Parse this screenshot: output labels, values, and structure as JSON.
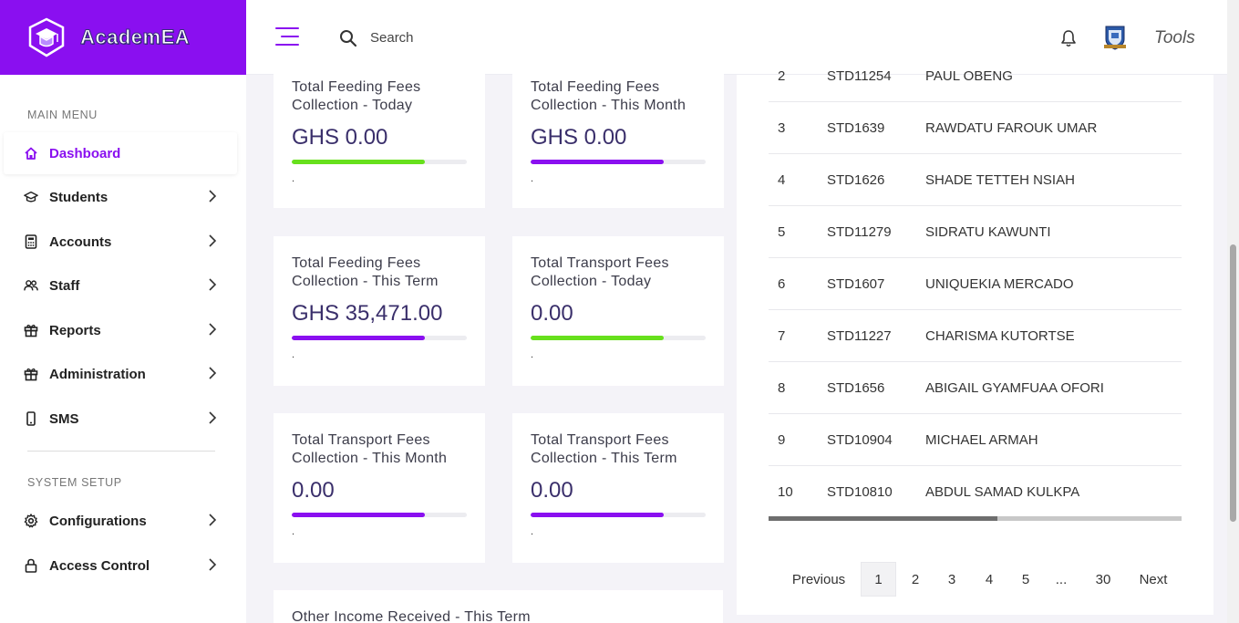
{
  "brand": {
    "name": "AcademEA"
  },
  "header": {
    "search_placeholder": "Search",
    "tools_label": "Tools"
  },
  "sidebar": {
    "main_menu_label": "MAIN MENU",
    "system_setup_label": "SYSTEM SETUP",
    "items": [
      {
        "label": "Dashboard",
        "icon": "home-icon",
        "active": true
      },
      {
        "label": "Students",
        "icon": "graduation-cap-icon"
      },
      {
        "label": "Accounts",
        "icon": "calculator-icon"
      },
      {
        "label": "Staff",
        "icon": "users-icon"
      },
      {
        "label": "Reports",
        "icon": "gift-icon"
      },
      {
        "label": "Administration",
        "icon": "gift-icon"
      },
      {
        "label": "SMS",
        "icon": "mobile-icon"
      },
      {
        "label": "Configurations",
        "icon": "gear-icon"
      },
      {
        "label": "Access Control",
        "icon": "lock-icon"
      }
    ]
  },
  "cards": [
    {
      "title": "Total Feeding Fees Collection - Today",
      "value": "GHS 0.00",
      "progress_pct": 76,
      "bar_color": "#67e01c",
      "foot": "."
    },
    {
      "title": "Total Feeding Fees Collection - This Month",
      "value": "GHS 0.00",
      "progress_pct": 76,
      "bar_color": "#8a0ff0",
      "foot": "."
    },
    {
      "title": "Total Feeding Fees Collection - This Term",
      "value": "GHS 35,471.00",
      "progress_pct": 76,
      "bar_color": "#8a0ff0",
      "foot": "."
    },
    {
      "title": "Total Transport Fees Collection - Today",
      "value": "0.00",
      "progress_pct": 76,
      "bar_color": "#67e01c",
      "foot": "."
    },
    {
      "title": "Total Transport Fees Collection - This Month",
      "value": "0.00",
      "progress_pct": 76,
      "bar_color": "#8a0ff0",
      "foot": "."
    },
    {
      "title": "Total Transport Fees Collection - This Term",
      "value": "0.00",
      "progress_pct": 76,
      "bar_color": "#8a0ff0",
      "foot": "."
    },
    {
      "title": "Other Income Received - This Term",
      "value": "",
      "progress_pct": 0,
      "bar_color": "#8a0ff0",
      "foot": ""
    }
  ],
  "students_table": {
    "rows": [
      {
        "no": "2",
        "id": "STD11254",
        "name": "PAUL OBENG"
      },
      {
        "no": "3",
        "id": "STD1639",
        "name": "RAWDATU FAROUK UMAR"
      },
      {
        "no": "4",
        "id": "STD1626",
        "name": "SHADE TETTEH NSIAH"
      },
      {
        "no": "5",
        "id": "STD11279",
        "name": "SIDRATU KAWUNTI"
      },
      {
        "no": "6",
        "id": "STD1607",
        "name": "UNIQUEKIA MERCADO"
      },
      {
        "no": "7",
        "id": "STD11227",
        "name": "CHARISMA KUTORTSE"
      },
      {
        "no": "8",
        "id": "STD1656",
        "name": "ABIGAIL GYAMFUAA OFORI"
      },
      {
        "no": "9",
        "id": "STD10904",
        "name": "MICHAEL ARMAH"
      },
      {
        "no": "10",
        "id": "STD10810",
        "name": "ABDUL SAMAD KULKPA"
      }
    ],
    "pagination": {
      "previous": "Previous",
      "next": "Next",
      "pages": [
        "1",
        "2",
        "3",
        "4",
        "5",
        "...",
        "30"
      ],
      "current": "1"
    }
  },
  "colors": {
    "accent": "#8a0ff0",
    "success": "#67e01c"
  }
}
